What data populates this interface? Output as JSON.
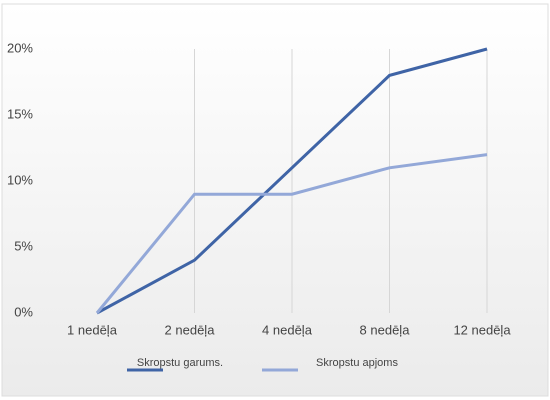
{
  "chart_data": {
    "type": "line",
    "categories": [
      "1 nedēļa",
      "2 nedēļa",
      "4 nedēļa",
      "8 nedēļa",
      "12 nedēļa"
    ],
    "series": [
      {
        "name": "Skropstu garums.",
        "color": "#3f64a6",
        "values": [
          0,
          4,
          11,
          18,
          20
        ]
      },
      {
        "name": "Skropstu apjoms",
        "color": "#93a8d8",
        "values": [
          0,
          9,
          9,
          11,
          12
        ]
      }
    ],
    "ylim": [
      0,
      20
    ],
    "yticks": [
      {
        "value": 0,
        "label": "0%"
      },
      {
        "value": 5,
        "label": "5%"
      },
      {
        "value": 10,
        "label": "10%"
      },
      {
        "value": 15,
        "label": "15%"
      },
      {
        "value": 20,
        "label": "20%"
      }
    ],
    "grid": true
  }
}
